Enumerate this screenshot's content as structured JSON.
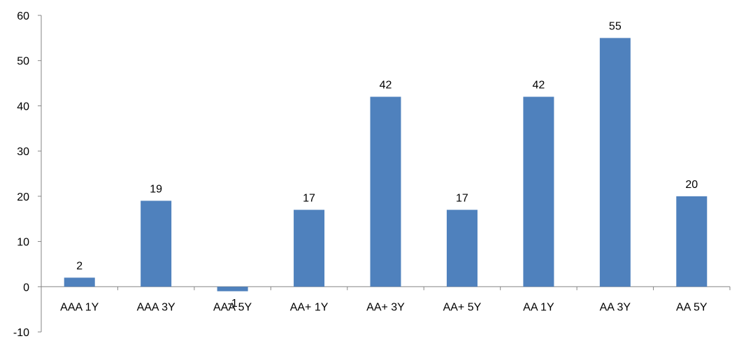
{
  "chart_data": {
    "type": "bar",
    "categories": [
      "AAA 1Y",
      "AAA 3Y",
      "AAA 5Y",
      "AA+ 1Y",
      "AA+ 3Y",
      "AA+ 5Y",
      "AA 1Y",
      "AA 3Y",
      "AA 5Y"
    ],
    "values": [
      2,
      19,
      -1,
      17,
      42,
      17,
      42,
      55,
      20
    ],
    "data_labels": [
      "2",
      "19",
      "-1",
      "17",
      "42",
      "17",
      "42",
      "55",
      "20"
    ],
    "y_ticks": [
      60,
      50,
      40,
      30,
      20,
      10,
      0,
      -10
    ],
    "ylim": [
      -10,
      60
    ],
    "title": "",
    "xlabel": "",
    "ylabel": "",
    "grid": false,
    "legend": "none",
    "bar_color": "#4F81BD"
  }
}
